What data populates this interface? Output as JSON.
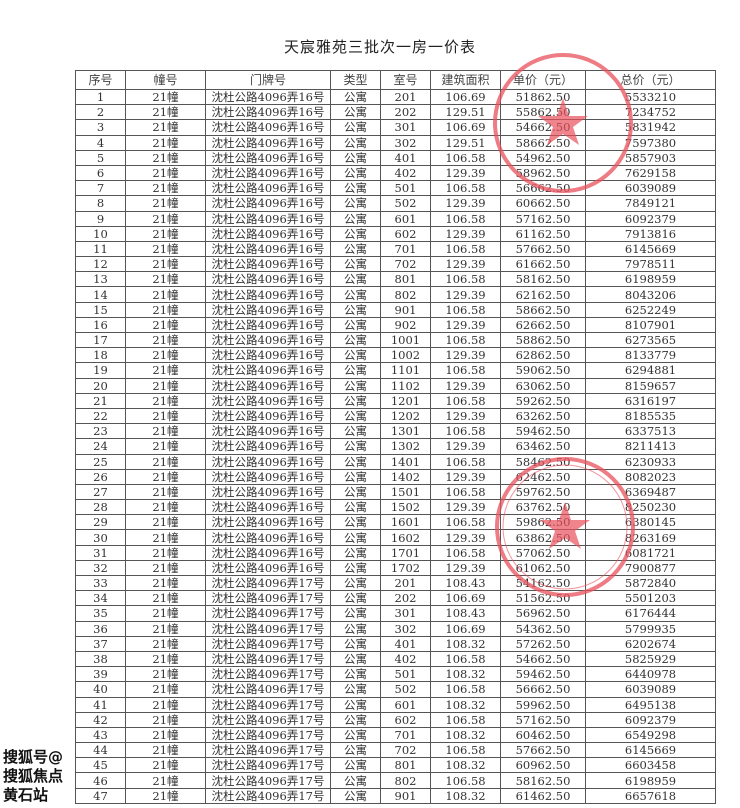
{
  "title": "天宸雅苑三批次一房一价表",
  "columns": [
    "序号",
    "幢号",
    "门牌号",
    "类型",
    "室号",
    "建筑面积",
    "单价（元）",
    "总价（元）"
  ],
  "rows": [
    [
      "1",
      "21幢",
      "沈杜公路4096弄16号",
      "公寓",
      "201",
      "106.69",
      "51862.50",
      "5533210"
    ],
    [
      "2",
      "21幢",
      "沈杜公路4096弄16号",
      "公寓",
      "202",
      "129.51",
      "55862.50",
      "7234752"
    ],
    [
      "3",
      "21幢",
      "沈杜公路4096弄16号",
      "公寓",
      "301",
      "106.69",
      "54662.50",
      "5831942"
    ],
    [
      "4",
      "21幢",
      "沈杜公路4096弄16号",
      "公寓",
      "302",
      "129.51",
      "58662.50",
      "7597380"
    ],
    [
      "5",
      "21幢",
      "沈杜公路4096弄16号",
      "公寓",
      "401",
      "106.58",
      "54962.50",
      "5857903"
    ],
    [
      "6",
      "21幢",
      "沈杜公路4096弄16号",
      "公寓",
      "402",
      "129.39",
      "58962.50",
      "7629158"
    ],
    [
      "7",
      "21幢",
      "沈杜公路4096弄16号",
      "公寓",
      "501",
      "106.58",
      "56662.50",
      "6039089"
    ],
    [
      "8",
      "21幢",
      "沈杜公路4096弄16号",
      "公寓",
      "502",
      "129.39",
      "60662.50",
      "7849121"
    ],
    [
      "9",
      "21幢",
      "沈杜公路4096弄16号",
      "公寓",
      "601",
      "106.58",
      "57162.50",
      "6092379"
    ],
    [
      "10",
      "21幢",
      "沈杜公路4096弄16号",
      "公寓",
      "602",
      "129.39",
      "61162.50",
      "7913816"
    ],
    [
      "11",
      "21幢",
      "沈杜公路4096弄16号",
      "公寓",
      "701",
      "106.58",
      "57662.50",
      "6145669"
    ],
    [
      "12",
      "21幢",
      "沈杜公路4096弄16号",
      "公寓",
      "702",
      "129.39",
      "61662.50",
      "7978511"
    ],
    [
      "13",
      "21幢",
      "沈杜公路4096弄16号",
      "公寓",
      "801",
      "106.58",
      "58162.50",
      "6198959"
    ],
    [
      "14",
      "21幢",
      "沈杜公路4096弄16号",
      "公寓",
      "802",
      "129.39",
      "62162.50",
      "8043206"
    ],
    [
      "15",
      "21幢",
      "沈杜公路4096弄16号",
      "公寓",
      "901",
      "106.58",
      "58662.50",
      "6252249"
    ],
    [
      "16",
      "21幢",
      "沈杜公路4096弄16号",
      "公寓",
      "902",
      "129.39",
      "62662.50",
      "8107901"
    ],
    [
      "17",
      "21幢",
      "沈杜公路4096弄16号",
      "公寓",
      "1001",
      "106.58",
      "58862.50",
      "6273565"
    ],
    [
      "18",
      "21幢",
      "沈杜公路4096弄16号",
      "公寓",
      "1002",
      "129.39",
      "62862.50",
      "8133779"
    ],
    [
      "19",
      "21幢",
      "沈杜公路4096弄16号",
      "公寓",
      "1101",
      "106.58",
      "59062.50",
      "6294881"
    ],
    [
      "20",
      "21幢",
      "沈杜公路4096弄16号",
      "公寓",
      "1102",
      "129.39",
      "63062.50",
      "8159657"
    ],
    [
      "21",
      "21幢",
      "沈杜公路4096弄16号",
      "公寓",
      "1201",
      "106.58",
      "59262.50",
      "6316197"
    ],
    [
      "22",
      "21幢",
      "沈杜公路4096弄16号",
      "公寓",
      "1202",
      "129.39",
      "63262.50",
      "8185535"
    ],
    [
      "23",
      "21幢",
      "沈杜公路4096弄16号",
      "公寓",
      "1301",
      "106.58",
      "59462.50",
      "6337513"
    ],
    [
      "24",
      "21幢",
      "沈杜公路4096弄16号",
      "公寓",
      "1302",
      "129.39",
      "63462.50",
      "8211413"
    ],
    [
      "25",
      "21幢",
      "沈杜公路4096弄16号",
      "公寓",
      "1401",
      "106.58",
      "58462.50",
      "6230933"
    ],
    [
      "26",
      "21幢",
      "沈杜公路4096弄16号",
      "公寓",
      "1402",
      "129.39",
      "62462.50",
      "8082023"
    ],
    [
      "27",
      "21幢",
      "沈杜公路4096弄16号",
      "公寓",
      "1501",
      "106.58",
      "59762.50",
      "6369487"
    ],
    [
      "28",
      "21幢",
      "沈杜公路4096弄16号",
      "公寓",
      "1502",
      "129.39",
      "63762.50",
      "8250230"
    ],
    [
      "29",
      "21幢",
      "沈杜公路4096弄16号",
      "公寓",
      "1601",
      "106.58",
      "59862.50",
      "6380145"
    ],
    [
      "30",
      "21幢",
      "沈杜公路4096弄16号",
      "公寓",
      "1602",
      "129.39",
      "63862.50",
      "8263169"
    ],
    [
      "31",
      "21幢",
      "沈杜公路4096弄16号",
      "公寓",
      "1701",
      "106.58",
      "57062.50",
      "6081721"
    ],
    [
      "32",
      "21幢",
      "沈杜公路4096弄16号",
      "公寓",
      "1702",
      "129.39",
      "61062.50",
      "7900877"
    ],
    [
      "33",
      "21幢",
      "沈杜公路4096弄17号",
      "公寓",
      "201",
      "108.43",
      "54162.50",
      "5872840"
    ],
    [
      "34",
      "21幢",
      "沈杜公路4096弄17号",
      "公寓",
      "202",
      "106.69",
      "51562.50",
      "5501203"
    ],
    [
      "35",
      "21幢",
      "沈杜公路4096弄17号",
      "公寓",
      "301",
      "108.43",
      "56962.50",
      "6176444"
    ],
    [
      "36",
      "21幢",
      "沈杜公路4096弄17号",
      "公寓",
      "302",
      "106.69",
      "54362.50",
      "5799935"
    ],
    [
      "37",
      "21幢",
      "沈杜公路4096弄17号",
      "公寓",
      "401",
      "108.32",
      "57262.50",
      "6202674"
    ],
    [
      "38",
      "21幢",
      "沈杜公路4096弄17号",
      "公寓",
      "402",
      "106.58",
      "54662.50",
      "5825929"
    ],
    [
      "39",
      "21幢",
      "沈杜公路4096弄17号",
      "公寓",
      "501",
      "108.32",
      "59462.50",
      "6440978"
    ],
    [
      "40",
      "21幢",
      "沈杜公路4096弄17号",
      "公寓",
      "502",
      "106.58",
      "56662.50",
      "6039089"
    ],
    [
      "41",
      "21幢",
      "沈杜公路4096弄17号",
      "公寓",
      "601",
      "108.32",
      "59962.50",
      "6495138"
    ],
    [
      "42",
      "21幢",
      "沈杜公路4096弄17号",
      "公寓",
      "602",
      "106.58",
      "57162.50",
      "6092379"
    ],
    [
      "43",
      "21幢",
      "沈杜公路4096弄17号",
      "公寓",
      "701",
      "108.32",
      "60462.50",
      "6549298"
    ],
    [
      "44",
      "21幢",
      "沈杜公路4096弄17号",
      "公寓",
      "702",
      "106.58",
      "57662.50",
      "6145669"
    ],
    [
      "45",
      "21幢",
      "沈杜公路4096弄17号",
      "公寓",
      "801",
      "108.32",
      "60962.50",
      "6603458"
    ],
    [
      "46",
      "21幢",
      "沈杜公路4096弄17号",
      "公寓",
      "802",
      "106.58",
      "58162.50",
      "6198959"
    ],
    [
      "47",
      "21幢",
      "沈杜公路4096弄17号",
      "公寓",
      "901",
      "108.32",
      "61462.50",
      "6657618"
    ]
  ],
  "watermark": "搜狐号@搜狐焦点黄石站",
  "seal_color": "#e8505b"
}
